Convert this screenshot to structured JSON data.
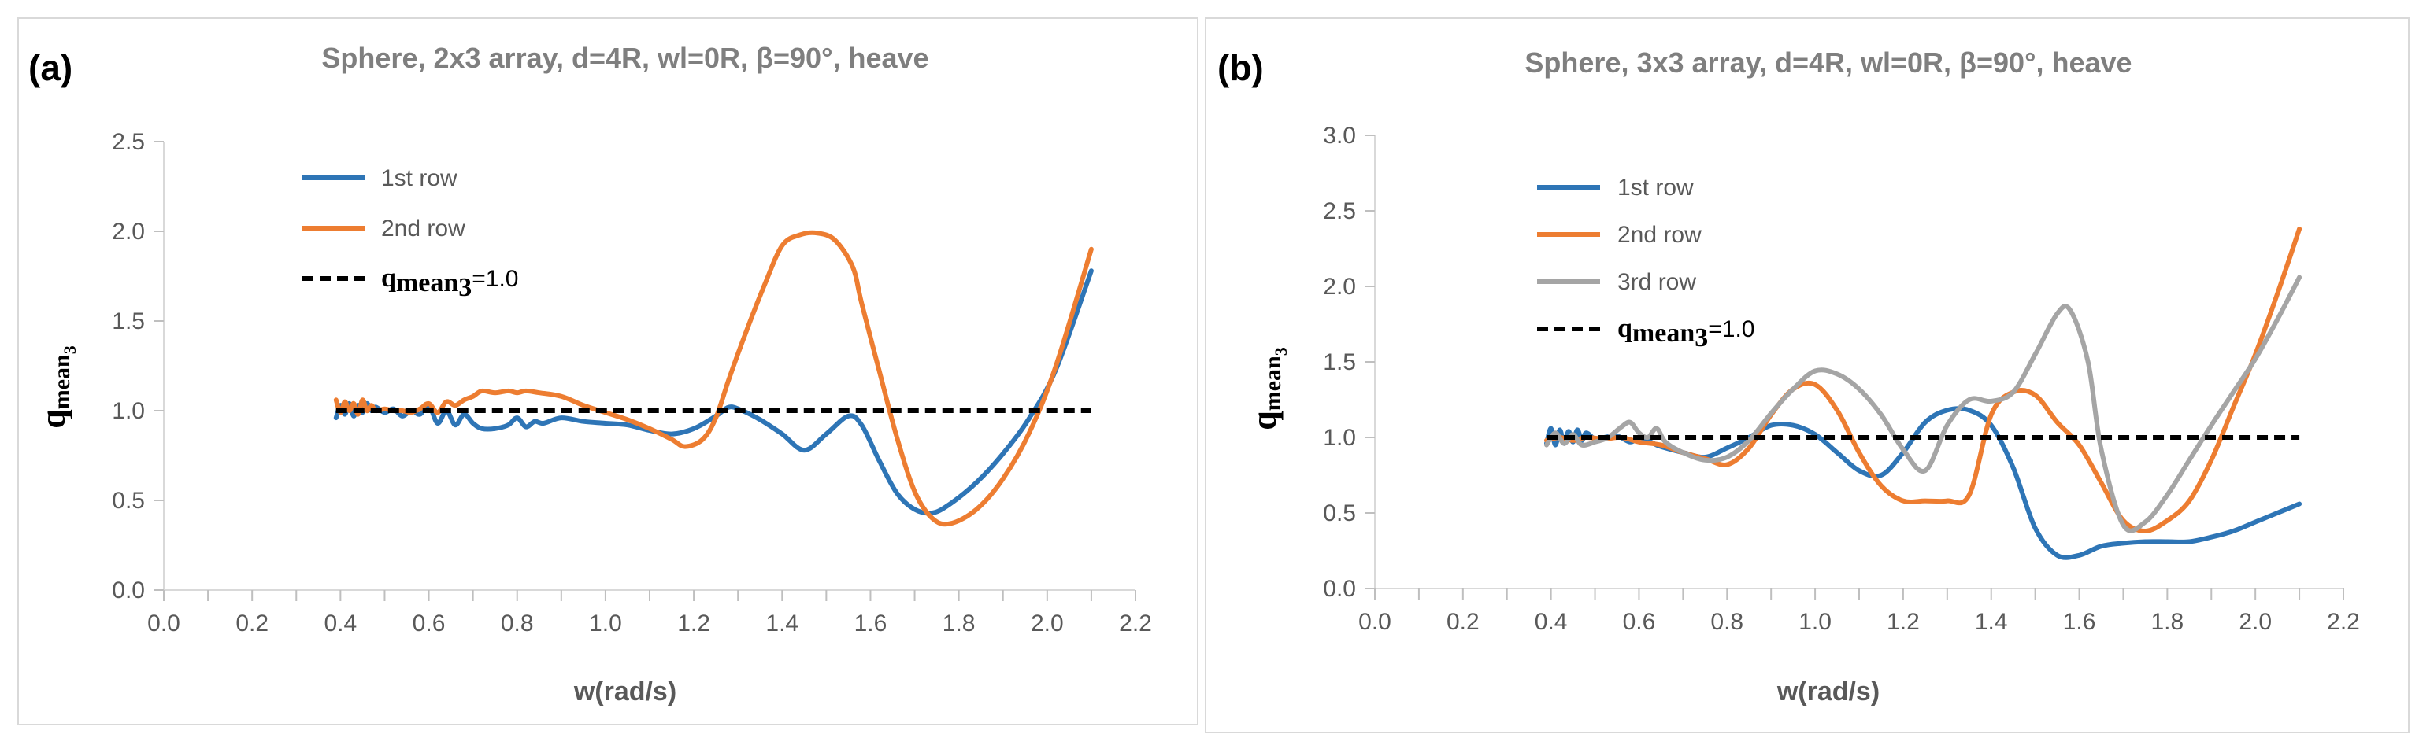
{
  "chart_data": [
    {
      "type": "line",
      "panel_tag": "(a)",
      "title": "Sphere, 2x3 array, d=4R, wl=0R, β=90°, heave",
      "xlabel": "w(rad/s)",
      "ylabel": {
        "main": "q",
        "sub": "mean",
        "subsub": "3"
      },
      "xlim": [
        0.0,
        2.2
      ],
      "ylim": [
        0.0,
        2.5
      ],
      "xticks": [
        "0.0",
        "0.2",
        "0.4",
        "0.6",
        "0.8",
        "1.0",
        "1.2",
        "1.4",
        "1.6",
        "1.8",
        "2.0",
        "2.2"
      ],
      "yticks": [
        "0.0",
        "0.5",
        "1.0",
        "1.5",
        "2.0",
        "2.5"
      ],
      "grid": false,
      "legend_position": "top-left",
      "series": [
        {
          "name": "1st row",
          "color": "#2e75b6",
          "style": "solid",
          "x": [
            0.39,
            0.4,
            0.41,
            0.42,
            0.43,
            0.44,
            0.45,
            0.46,
            0.47,
            0.48,
            0.5,
            0.52,
            0.54,
            0.56,
            0.58,
            0.6,
            0.62,
            0.64,
            0.66,
            0.68,
            0.7,
            0.72,
            0.75,
            0.78,
            0.8,
            0.82,
            0.84,
            0.86,
            0.9,
            0.95,
            1.0,
            1.05,
            1.1,
            1.15,
            1.2,
            1.25,
            1.28,
            1.31,
            1.35,
            1.4,
            1.45,
            1.5,
            1.55,
            1.58,
            1.62,
            1.66,
            1.7,
            1.74,
            1.78,
            1.84,
            1.9,
            1.96,
            2.02,
            2.1
          ],
          "y": [
            0.96,
            1.03,
            0.98,
            1.04,
            0.97,
            1.03,
            0.99,
            1.04,
            1.0,
            1.02,
            0.99,
            1.01,
            0.97,
            1.0,
            0.98,
            1.03,
            0.93,
            1.0,
            0.92,
            0.98,
            0.93,
            0.9,
            0.9,
            0.92,
            0.96,
            0.91,
            0.94,
            0.93,
            0.96,
            0.94,
            0.93,
            0.92,
            0.89,
            0.87,
            0.9,
            0.97,
            1.02,
            1.0,
            0.95,
            0.87,
            0.78,
            0.87,
            0.97,
            0.92,
            0.72,
            0.54,
            0.45,
            0.43,
            0.48,
            0.6,
            0.76,
            0.96,
            1.23,
            1.78
          ]
        },
        {
          "name": "2nd row",
          "color": "#ed7d31",
          "style": "solid",
          "x": [
            0.39,
            0.4,
            0.41,
            0.42,
            0.43,
            0.44,
            0.45,
            0.46,
            0.47,
            0.48,
            0.5,
            0.52,
            0.54,
            0.56,
            0.58,
            0.6,
            0.62,
            0.64,
            0.66,
            0.68,
            0.7,
            0.72,
            0.75,
            0.78,
            0.8,
            0.82,
            0.85,
            0.9,
            0.95,
            1.0,
            1.05,
            1.1,
            1.15,
            1.18,
            1.22,
            1.25,
            1.28,
            1.32,
            1.36,
            1.4,
            1.44,
            1.48,
            1.52,
            1.56,
            1.58,
            1.62,
            1.66,
            1.7,
            1.74,
            1.78,
            1.84,
            1.9,
            1.96,
            2.02,
            2.1
          ],
          "y": [
            1.06,
            0.99,
            1.05,
            1.0,
            1.04,
            0.98,
            1.06,
            1.0,
            1.03,
            1.0,
            1.01,
            1.0,
            1.0,
            0.99,
            1.01,
            1.04,
            0.99,
            1.05,
            1.03,
            1.06,
            1.08,
            1.11,
            1.1,
            1.11,
            1.1,
            1.11,
            1.1,
            1.08,
            1.03,
            0.99,
            0.95,
            0.9,
            0.84,
            0.8,
            0.84,
            0.96,
            1.18,
            1.45,
            1.7,
            1.92,
            1.98,
            1.99,
            1.95,
            1.8,
            1.6,
            1.22,
            0.85,
            0.55,
            0.4,
            0.37,
            0.45,
            0.62,
            0.88,
            1.25,
            1.9
          ]
        },
        {
          "name": "q_mean3=1.0",
          "color": "#000000",
          "style": "dashed",
          "x": [
            0.39,
            2.1
          ],
          "y": [
            1.0,
            1.0
          ]
        }
      ]
    },
    {
      "type": "line",
      "panel_tag": "(b)",
      "title": "Sphere, 3x3 array, d=4R, wl=0R, β=90°, heave",
      "xlabel": "w(rad/s)",
      "ylabel": {
        "main": "q",
        "sub": "mean",
        "subsub": "3"
      },
      "xlim": [
        0.0,
        2.2
      ],
      "ylim": [
        0.0,
        3.0
      ],
      "xticks": [
        "0.0",
        "0.2",
        "0.4",
        "0.6",
        "0.8",
        "1.0",
        "1.2",
        "1.4",
        "1.6",
        "1.8",
        "2.0",
        "2.2"
      ],
      "yticks": [
        "0.0",
        "0.5",
        "1.0",
        "1.5",
        "2.0",
        "2.5",
        "3.0"
      ],
      "grid": false,
      "legend_position": "top-left",
      "series": [
        {
          "name": "1st row",
          "color": "#2e75b6",
          "style": "solid",
          "x": [
            0.39,
            0.4,
            0.41,
            0.42,
            0.43,
            0.44,
            0.45,
            0.46,
            0.47,
            0.48,
            0.5,
            0.52,
            0.55,
            0.58,
            0.6,
            0.62,
            0.64,
            0.66,
            0.7,
            0.75,
            0.8,
            0.85,
            0.9,
            0.95,
            1.0,
            1.05,
            1.1,
            1.15,
            1.2,
            1.25,
            1.3,
            1.35,
            1.4,
            1.45,
            1.5,
            1.55,
            1.6,
            1.65,
            1.7,
            1.75,
            1.8,
            1.85,
            1.9,
            1.95,
            2.0,
            2.05,
            2.1
          ],
          "y": [
            0.96,
            1.06,
            0.95,
            1.05,
            0.96,
            1.04,
            0.97,
            1.05,
            0.98,
            1.03,
            0.99,
            1.0,
            1.01,
            0.97,
            1.0,
            0.98,
            0.95,
            0.93,
            0.9,
            0.87,
            0.93,
            1.0,
            1.08,
            1.08,
            1.02,
            0.9,
            0.78,
            0.75,
            0.9,
            1.1,
            1.18,
            1.18,
            1.08,
            0.8,
            0.4,
            0.22,
            0.22,
            0.28,
            0.3,
            0.31,
            0.31,
            0.31,
            0.34,
            0.38,
            0.44,
            0.5,
            0.56
          ]
        },
        {
          "name": "2nd row",
          "color": "#ed7d31",
          "style": "solid",
          "x": [
            0.39,
            0.42,
            0.45,
            0.48,
            0.52,
            0.56,
            0.6,
            0.65,
            0.7,
            0.75,
            0.8,
            0.85,
            0.9,
            0.95,
            1.0,
            1.05,
            1.1,
            1.15,
            1.2,
            1.25,
            1.3,
            1.35,
            1.4,
            1.45,
            1.5,
            1.55,
            1.6,
            1.65,
            1.7,
            1.75,
            1.8,
            1.85,
            1.9,
            1.95,
            2.0,
            2.05,
            2.1
          ],
          "y": [
            0.98,
            1.0,
            0.98,
            1.0,
            0.99,
            1.0,
            0.97,
            0.95,
            0.9,
            0.86,
            0.82,
            0.93,
            1.15,
            1.32,
            1.35,
            1.18,
            0.9,
            0.68,
            0.58,
            0.58,
            0.58,
            0.62,
            1.15,
            1.3,
            1.28,
            1.1,
            0.95,
            0.7,
            0.45,
            0.38,
            0.45,
            0.58,
            0.85,
            1.2,
            1.55,
            1.95,
            2.38
          ]
        },
        {
          "name": "3rd row",
          "color": "#a5a5a5",
          "style": "solid",
          "x": [
            0.39,
            0.41,
            0.43,
            0.45,
            0.47,
            0.5,
            0.53,
            0.56,
            0.58,
            0.6,
            0.62,
            0.64,
            0.66,
            0.7,
            0.75,
            0.8,
            0.85,
            0.9,
            0.95,
            1.0,
            1.05,
            1.1,
            1.15,
            1.2,
            1.25,
            1.3,
            1.35,
            1.4,
            1.45,
            1.5,
            1.55,
            1.58,
            1.62,
            1.65,
            1.7,
            1.75,
            1.8,
            1.85,
            1.9,
            1.95,
            2.0,
            2.05,
            2.1
          ],
          "y": [
            0.95,
            1.03,
            0.96,
            1.02,
            0.95,
            0.97,
            1.0,
            1.07,
            1.1,
            1.03,
            1.0,
            1.06,
            0.97,
            0.9,
            0.85,
            0.87,
            0.98,
            1.16,
            1.32,
            1.44,
            1.42,
            1.32,
            1.15,
            0.92,
            0.78,
            1.08,
            1.25,
            1.24,
            1.3,
            1.55,
            1.82,
            1.84,
            1.5,
            0.92,
            0.42,
            0.44,
            0.62,
            0.85,
            1.08,
            1.3,
            1.52,
            1.78,
            2.06
          ]
        },
        {
          "name": "q_mean3=1.0",
          "color": "#000000",
          "style": "dashed",
          "x": [
            0.39,
            2.1
          ],
          "y": [
            1.0,
            1.0
          ]
        }
      ]
    }
  ]
}
